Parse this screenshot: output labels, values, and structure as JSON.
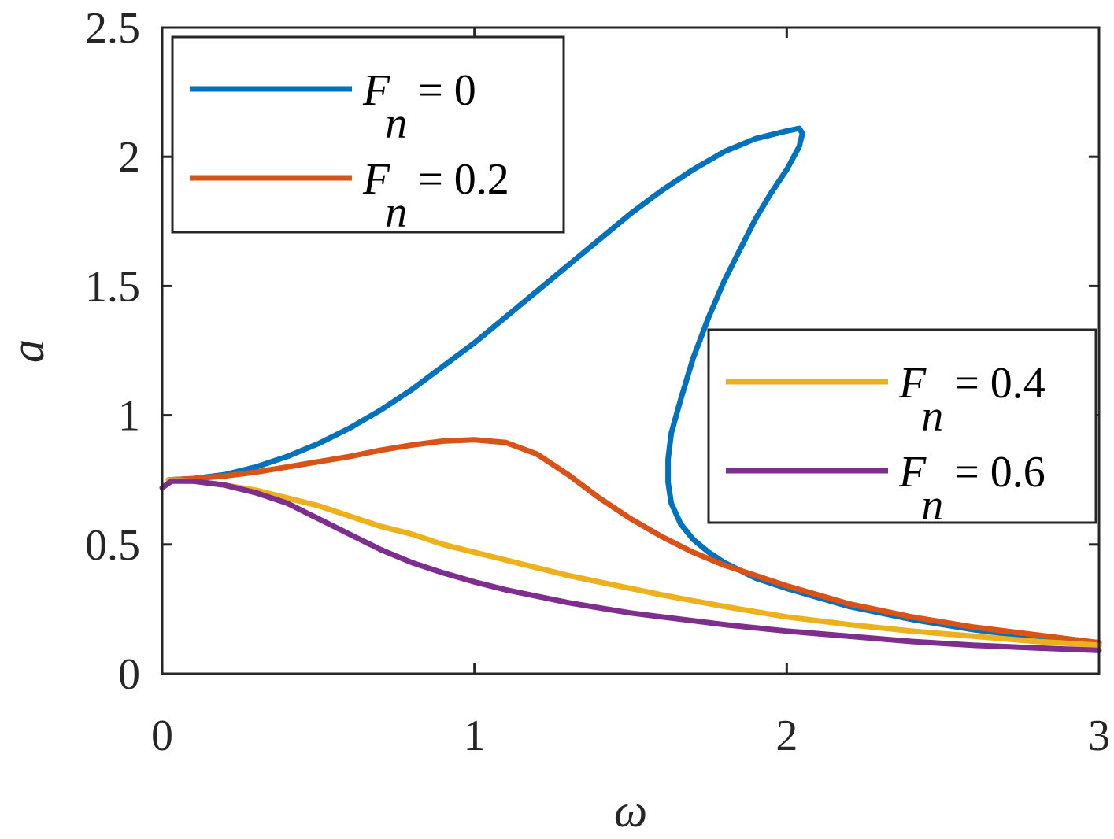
{
  "chart_data": {
    "type": "line",
    "title": "",
    "xlabel": "ω",
    "ylabel": "a",
    "xlim": [
      0,
      3
    ],
    "ylim": [
      0,
      2.5
    ],
    "xticks": [
      0,
      1,
      2,
      3
    ],
    "xtick_labels": [
      "0",
      "1",
      "2",
      "3"
    ],
    "yticks": [
      0,
      0.5,
      1,
      1.5,
      2,
      2.5
    ],
    "ytick_labels": [
      "0",
      "0.5",
      "1",
      "1.5",
      "2",
      "2.5"
    ],
    "grid": false,
    "legends": [
      {
        "placement": "top-left",
        "entries": [
          0,
          1
        ]
      },
      {
        "placement": "right",
        "entries": [
          2,
          3
        ]
      }
    ],
    "series": [
      {
        "name": "F_n = 0",
        "label_var": "F",
        "label_sub": "n",
        "label_rest": " = 0",
        "color": "#0072BD",
        "x": [
          0.02,
          0.1,
          0.2,
          0.3,
          0.4,
          0.5,
          0.6,
          0.7,
          0.8,
          0.9,
          1.0,
          1.1,
          1.2,
          1.3,
          1.4,
          1.5,
          1.6,
          1.7,
          1.8,
          1.9,
          2.0,
          2.04,
          2.05,
          2.04,
          2.0,
          1.95,
          1.9,
          1.85,
          1.8,
          1.75,
          1.7,
          1.66,
          1.63,
          1.62,
          1.62,
          1.63,
          1.66,
          1.7,
          1.75,
          1.8,
          1.9,
          2.0,
          2.2,
          2.4,
          2.6,
          2.8,
          3.0
        ],
        "y": [
          0.75,
          0.755,
          0.77,
          0.8,
          0.84,
          0.89,
          0.95,
          1.02,
          1.1,
          1.19,
          1.28,
          1.38,
          1.48,
          1.58,
          1.68,
          1.78,
          1.87,
          1.95,
          2.02,
          2.07,
          2.1,
          2.11,
          2.09,
          2.04,
          1.95,
          1.86,
          1.76,
          1.64,
          1.52,
          1.38,
          1.22,
          1.06,
          0.93,
          0.83,
          0.74,
          0.66,
          0.58,
          0.52,
          0.47,
          0.43,
          0.37,
          0.33,
          0.26,
          0.21,
          0.17,
          0.14,
          0.12
        ]
      },
      {
        "name": "F_n = 0.2",
        "label_var": "F",
        "label_sub": "n",
        "label_rest": " = 0.2",
        "color": "#D95319",
        "x": [
          0.02,
          0.1,
          0.2,
          0.3,
          0.4,
          0.5,
          0.6,
          0.7,
          0.8,
          0.9,
          1.0,
          1.1,
          1.2,
          1.3,
          1.4,
          1.5,
          1.6,
          1.7,
          1.8,
          1.9,
          2.0,
          2.2,
          2.4,
          2.6,
          2.8,
          3.0
        ],
        "y": [
          0.75,
          0.755,
          0.765,
          0.78,
          0.8,
          0.82,
          0.84,
          0.865,
          0.885,
          0.9,
          0.905,
          0.895,
          0.85,
          0.77,
          0.68,
          0.6,
          0.53,
          0.47,
          0.42,
          0.38,
          0.34,
          0.27,
          0.22,
          0.18,
          0.15,
          0.12
        ]
      },
      {
        "name": "F_n = 0.4",
        "label_var": "F",
        "label_sub": "n",
        "label_rest": " = 0.4",
        "color": "#EDB120",
        "x": [
          0.02,
          0.1,
          0.2,
          0.3,
          0.4,
          0.5,
          0.6,
          0.7,
          0.8,
          0.9,
          1.0,
          1.1,
          1.2,
          1.3,
          1.4,
          1.5,
          1.6,
          1.8,
          2.0,
          2.2,
          2.4,
          2.6,
          2.8,
          3.0
        ],
        "y": [
          0.75,
          0.745,
          0.73,
          0.71,
          0.68,
          0.65,
          0.61,
          0.57,
          0.54,
          0.5,
          0.47,
          0.44,
          0.41,
          0.38,
          0.355,
          0.33,
          0.305,
          0.26,
          0.22,
          0.19,
          0.165,
          0.145,
          0.125,
          0.11
        ]
      },
      {
        "name": "F_n = 0.6",
        "label_var": "F",
        "label_sub": "n",
        "label_rest": " = 0.6",
        "color": "#7E2F8E",
        "x": [
          0.0,
          0.03,
          0.1,
          0.2,
          0.3,
          0.4,
          0.5,
          0.6,
          0.7,
          0.8,
          0.9,
          1.0,
          1.1,
          1.2,
          1.3,
          1.4,
          1.5,
          1.6,
          1.8,
          2.0,
          2.2,
          2.4,
          2.6,
          2.8,
          3.0
        ],
        "y": [
          0.72,
          0.745,
          0.745,
          0.73,
          0.7,
          0.66,
          0.6,
          0.54,
          0.48,
          0.43,
          0.39,
          0.355,
          0.325,
          0.3,
          0.275,
          0.255,
          0.235,
          0.22,
          0.19,
          0.165,
          0.145,
          0.125,
          0.11,
          0.1,
          0.09
        ]
      }
    ]
  }
}
